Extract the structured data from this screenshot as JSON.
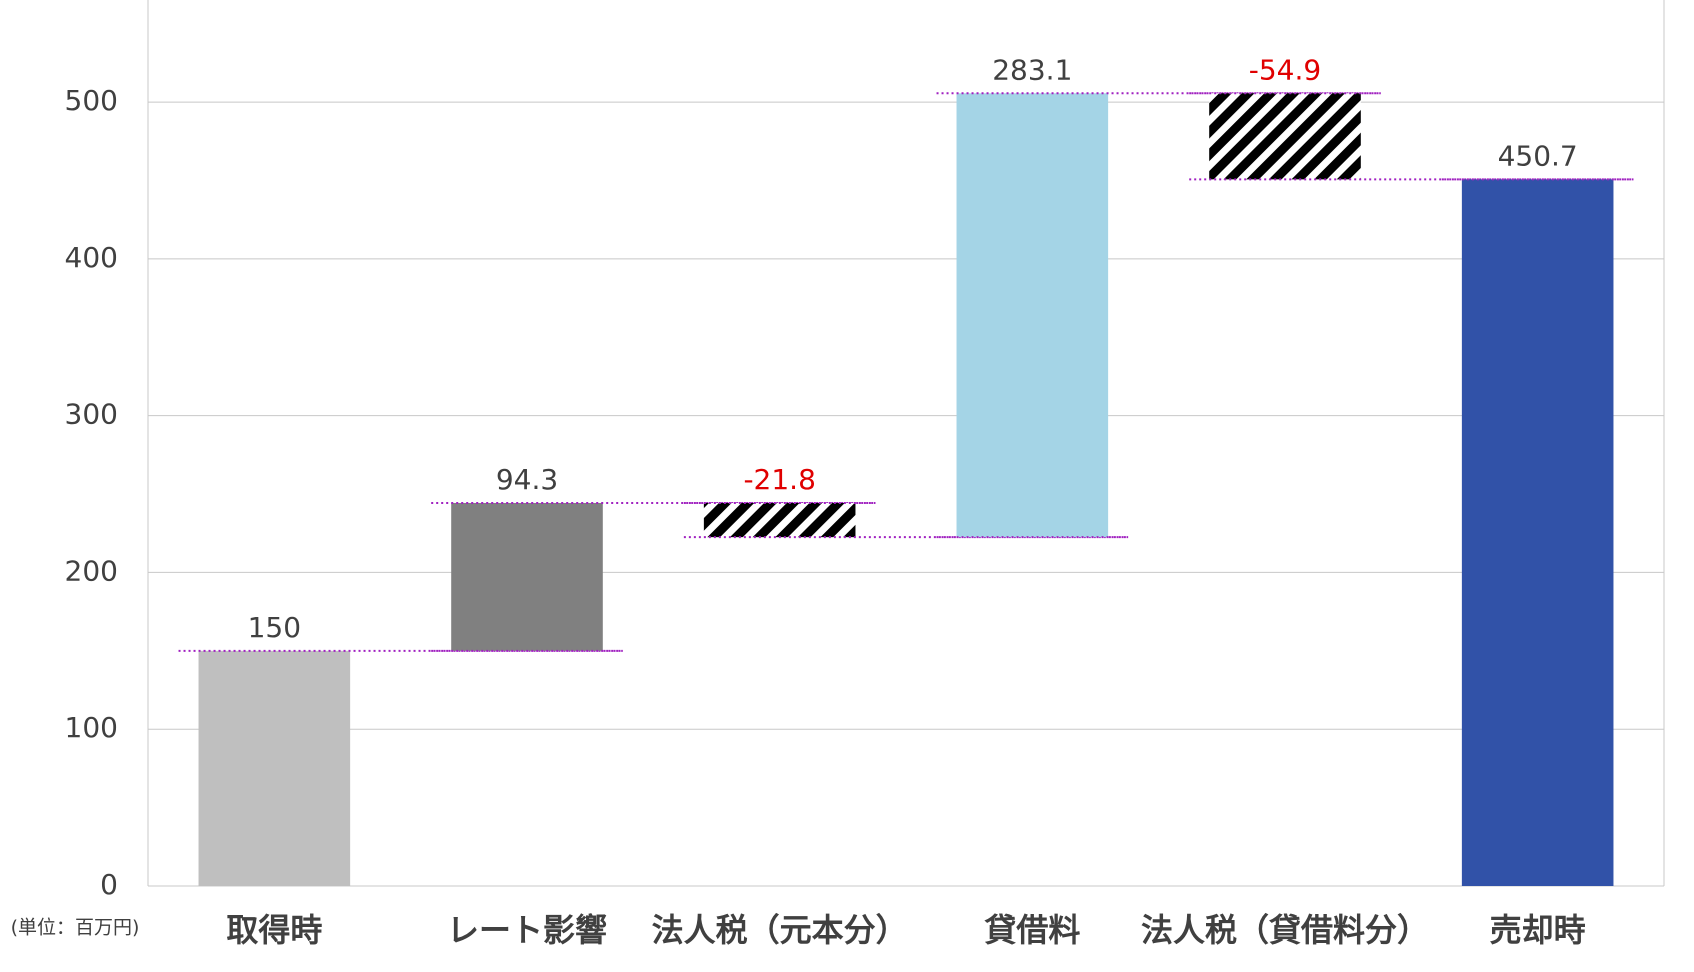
{
  "chart_data": {
    "type": "waterfall",
    "categories": [
      "取得時",
      "レート影響",
      "法人税（元本分）",
      "貸借料",
      "法人税（貸借料分）",
      "売却時"
    ],
    "values": [
      150,
      94.3,
      -21.8,
      283.1,
      -54.9,
      450.7
    ],
    "colors": [
      "#bfbfbf",
      "#808080",
      "#a6a6a6",
      "#a4d4e6",
      "#a6a6a6",
      "#3152a8"
    ],
    "negative_label_color": "#e00000",
    "connector_color": "#a020c0",
    "y_axis_label": "(単位：百万円)",
    "ylim": [
      0,
      560
    ],
    "yticks": [
      0,
      100,
      200,
      300,
      400,
      500
    ],
    "grid": true
  }
}
